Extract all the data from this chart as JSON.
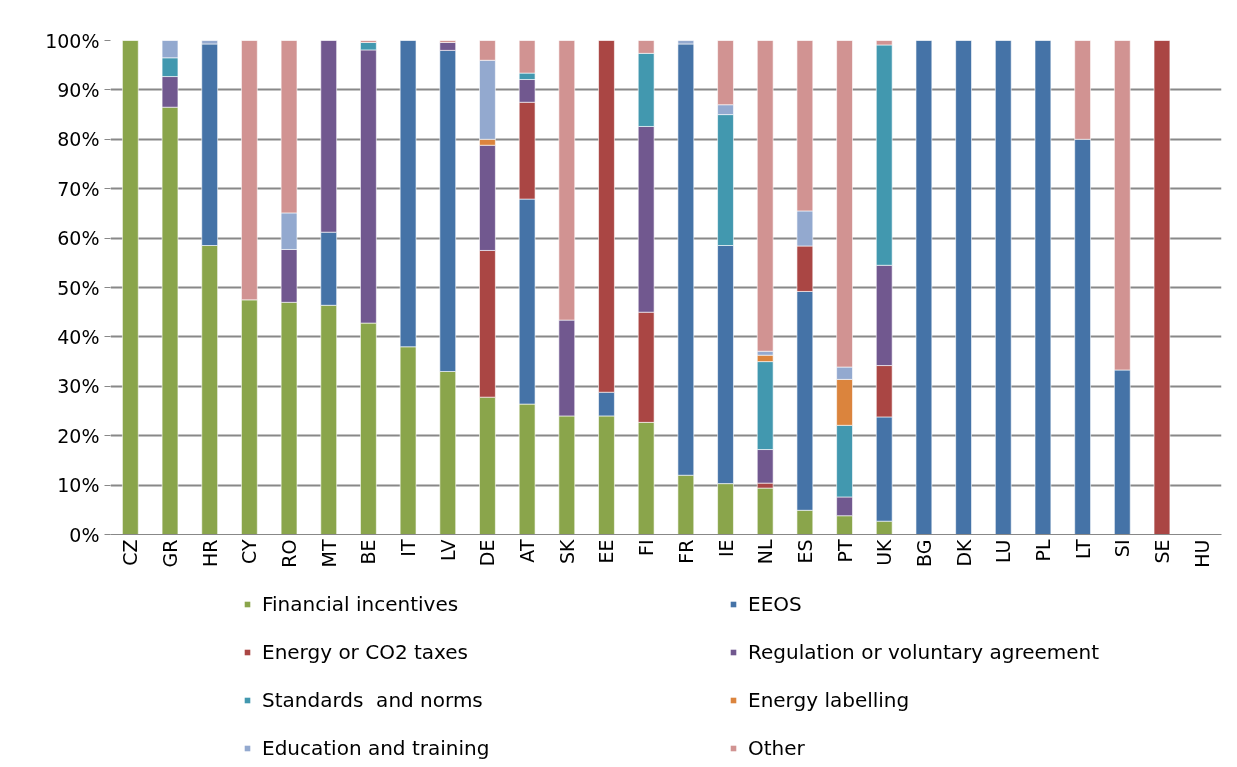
{
  "chart_data": {
    "type": "bar",
    "stacked": true,
    "categories": [
      "CZ",
      "GR",
      "HR",
      "CY",
      "RO",
      "MT",
      "BE",
      "IT",
      "LV",
      "DE",
      "AT",
      "SK",
      "EE",
      "FI",
      "FR",
      "IE",
      "NL",
      "ES",
      "PT",
      "UK",
      "BG",
      "DK",
      "LU",
      "PL",
      "LT",
      "SI",
      "SE",
      "HU"
    ],
    "series": [
      {
        "name": "Financial incentives",
        "color": "#8aa54b",
        "values": [
          100,
          86.5,
          58.5,
          47.5,
          47,
          46.4,
          42.8,
          38,
          33,
          27.8,
          26.4,
          24,
          24,
          22.7,
          12,
          10.3,
          9.4,
          4.9,
          3.8,
          2.7,
          null,
          null,
          null,
          null,
          null,
          null,
          null,
          null
        ]
      },
      {
        "name": "EEOS",
        "color": "#4573a7",
        "values": [
          null,
          null,
          40.8,
          null,
          null,
          14.8,
          null,
          62,
          65,
          null,
          41.5,
          null,
          4.8,
          null,
          87.3,
          48.2,
          null,
          44.3,
          null,
          21.1,
          100,
          100,
          100,
          100,
          80,
          33.3,
          null,
          null
        ]
      },
      {
        "name": "Energy or CO2 taxes",
        "color": "#aa4644",
        "values": [
          null,
          null,
          null,
          null,
          null,
          null,
          null,
          null,
          null,
          29.7,
          19.6,
          null,
          71.2,
          22.3,
          null,
          null,
          1,
          9.2,
          null,
          10.4,
          null,
          null,
          null,
          null,
          null,
          null,
          100,
          null
        ]
      },
      {
        "name": "Regulation or voluntary agreement",
        "color": "#71588f",
        "values": [
          null,
          6.2,
          null,
          null,
          10.7,
          38.8,
          55.3,
          null,
          1.6,
          21.3,
          4.6,
          19.4,
          null,
          37.6,
          null,
          null,
          6.8,
          null,
          3.8,
          20.3,
          null,
          null,
          null,
          null,
          null,
          null,
          null,
          null
        ]
      },
      {
        "name": "Standards  and norms",
        "color": "#4298af",
        "values": [
          null,
          3.8,
          null,
          null,
          null,
          null,
          1.5,
          null,
          null,
          null,
          1.3,
          null,
          null,
          14.8,
          null,
          26.5,
          17.8,
          null,
          14.5,
          44.6,
          null,
          null,
          null,
          null,
          null,
          null,
          null,
          null
        ]
      },
      {
        "name": "Energy labelling",
        "color": "#db843d",
        "values": [
          null,
          null,
          null,
          null,
          null,
          null,
          null,
          null,
          null,
          1.2,
          null,
          null,
          null,
          null,
          null,
          null,
          1.3,
          null,
          9.3,
          null,
          null,
          null,
          null,
          null,
          null,
          null,
          null,
          null
        ]
      },
      {
        "name": "Education and training",
        "color": "#93a9cf",
        "values": [
          null,
          3.5,
          0.7,
          null,
          7.4,
          null,
          null,
          null,
          null,
          16,
          null,
          null,
          null,
          null,
          0.7,
          2,
          0.8,
          7.1,
          2.5,
          null,
          null,
          null,
          null,
          null,
          null,
          null,
          null,
          null
        ]
      },
      {
        "name": "Other",
        "color": "#d19392",
        "values": [
          null,
          null,
          null,
          52.5,
          34.9,
          null,
          0.4,
          null,
          0.4,
          4,
          6.6,
          56.6,
          null,
          2.6,
          null,
          13,
          62.9,
          34.5,
          66.1,
          0.9,
          null,
          null,
          null,
          null,
          20,
          66.7,
          null,
          null
        ]
      }
    ],
    "ylim": [
      0,
      100
    ],
    "yticks": [
      {
        "value": 0,
        "label": "0%"
      },
      {
        "value": 10,
        "label": "10%"
      },
      {
        "value": 20,
        "label": "20%"
      },
      {
        "value": 30,
        "label": "30%"
      },
      {
        "value": 40,
        "label": "40%"
      },
      {
        "value": 50,
        "label": "50%"
      },
      {
        "value": 60,
        "label": "60%"
      },
      {
        "value": 70,
        "label": "70%"
      },
      {
        "value": 80,
        "label": "80%"
      },
      {
        "value": 90,
        "label": "90%"
      },
      {
        "value": 100,
        "label": "100%"
      }
    ],
    "grid": "y",
    "legend": "bottom"
  }
}
